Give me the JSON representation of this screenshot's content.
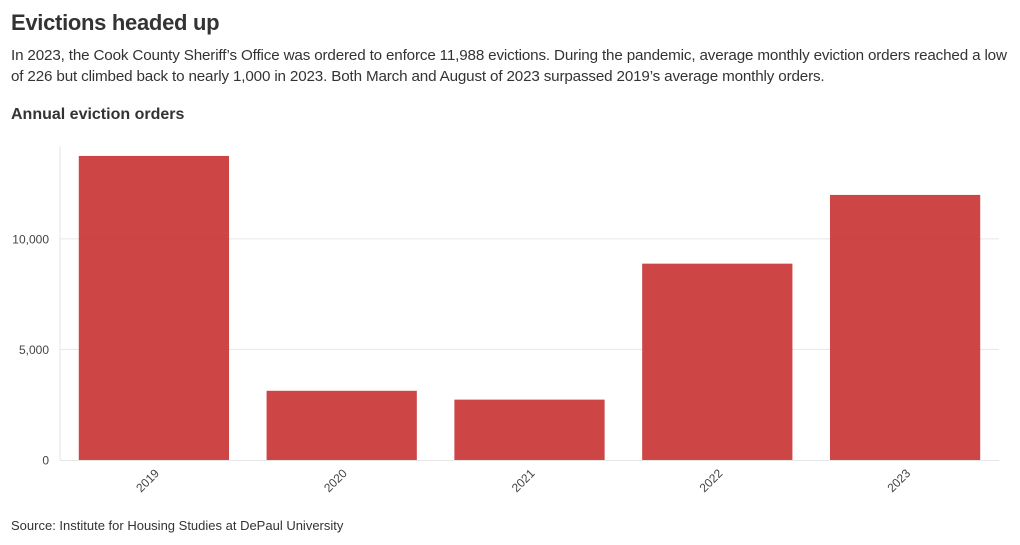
{
  "header": {
    "title": "Evictions headed up",
    "subtitle": "In 2023, the Cook County Sheriff’s Office was ordered to enforce 11,988 evictions. During the pandemic, average monthly eviction orders reached a low of 226 but climbed back to nearly 1,000 in 2023. Both March and August of 2023 surpassed 2019’s average monthly orders.",
    "chart_heading": "Annual eviction orders"
  },
  "footer": {
    "source": "Source: Institute for Housing Studies at DePaul University"
  },
  "chart_data": {
    "type": "bar",
    "title": "Annual eviction orders",
    "categories": [
      "2019",
      "2020",
      "2021",
      "2022",
      "2023"
    ],
    "values": [
      13750,
      3130,
      2730,
      8880,
      11988
    ],
    "ylim": [
      0,
      14200
    ],
    "yticks": [
      0,
      5000,
      10000
    ],
    "ytick_labels": [
      "0",
      "5,000",
      "10,000"
    ],
    "xlabel": "",
    "ylabel": "",
    "grid": true,
    "bar_color": "#c93535",
    "grid_color": "#e6e6e6",
    "tick_label_color": "#444444"
  }
}
